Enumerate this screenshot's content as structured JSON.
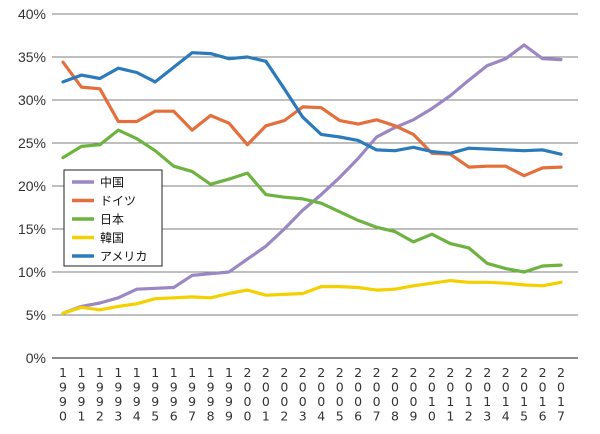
{
  "chart_data": {
    "type": "line",
    "x": [
      "1990",
      "1991",
      "1992",
      "1993",
      "1994",
      "1995",
      "1996",
      "1997",
      "1998",
      "1999",
      "2000",
      "2001",
      "2002",
      "2003",
      "2004",
      "2005",
      "2006",
      "2007",
      "2008",
      "2009",
      "2010",
      "2011",
      "2012",
      "2013",
      "2014",
      "2015",
      "2016",
      "2017"
    ],
    "ylim": [
      0,
      40
    ],
    "yticks": [
      "0%",
      "5%",
      "10%",
      "15%",
      "20%",
      "25%",
      "30%",
      "35%",
      "40%"
    ],
    "grid": true,
    "legend_position": "left-middle",
    "series": [
      {
        "name": "中国",
        "color": "#9b87c4",
        "values": [
          5.2,
          6.0,
          6.4,
          7.0,
          8.0,
          8.1,
          8.2,
          9.6,
          9.8,
          10.0,
          11.5,
          13.0,
          15.0,
          17.2,
          19.0,
          21.0,
          23.2,
          25.7,
          26.8,
          27.7,
          29.0,
          30.5,
          32.3,
          34.0,
          34.8,
          36.4,
          34.8,
          34.7
        ]
      },
      {
        "name": "ドイツ",
        "color": "#e56f3c",
        "values": [
          34.4,
          31.5,
          31.3,
          27.5,
          27.5,
          28.7,
          28.7,
          26.5,
          28.2,
          27.3,
          24.8,
          27.0,
          27.6,
          29.2,
          29.1,
          27.6,
          27.2,
          27.7,
          27.0,
          26.0,
          23.8,
          23.7,
          22.2,
          22.3,
          22.3,
          21.2,
          22.1,
          22.2
        ]
      },
      {
        "name": "日本",
        "color": "#6db33f",
        "values": [
          23.3,
          24.6,
          24.8,
          26.5,
          25.5,
          24.1,
          22.3,
          21.7,
          20.2,
          20.8,
          21.5,
          19.0,
          18.7,
          18.5,
          18.0,
          17.0,
          16.0,
          15.2,
          14.7,
          13.5,
          14.4,
          13.3,
          12.8,
          11.0,
          10.4,
          10.0,
          10.7,
          10.8
        ]
      },
      {
        "name": "韓国",
        "color": "#f4d000",
        "values": [
          5.2,
          5.9,
          5.6,
          6.0,
          6.3,
          6.9,
          7.0,
          7.1,
          7.0,
          7.5,
          7.9,
          7.3,
          7.4,
          7.5,
          8.3,
          8.3,
          8.2,
          7.9,
          8.0,
          8.4,
          8.7,
          9.0,
          8.8,
          8.8,
          8.7,
          8.5,
          8.4,
          8.8
        ]
      },
      {
        "name": "アメリカ",
        "color": "#2b7bbc",
        "values": [
          32.1,
          32.9,
          32.5,
          33.7,
          33.2,
          32.1,
          33.8,
          35.5,
          35.4,
          34.8,
          35.0,
          34.5,
          31.3,
          28.0,
          26.0,
          25.7,
          25.3,
          24.2,
          24.1,
          24.5,
          24.0,
          23.8,
          24.4,
          24.3,
          24.2,
          24.1,
          24.2,
          23.7
        ]
      }
    ]
  }
}
